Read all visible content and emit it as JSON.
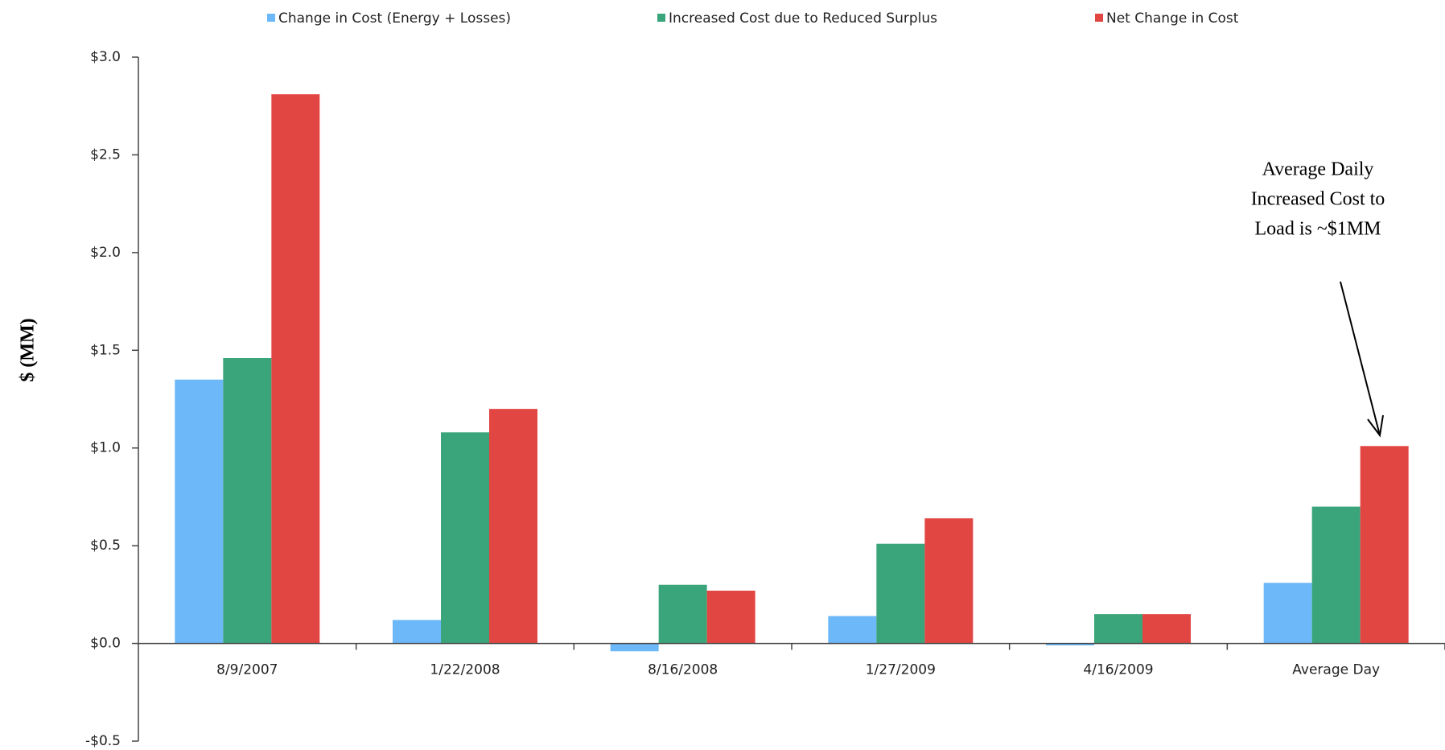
{
  "chart_data": {
    "type": "bar",
    "y_label": "$ (MM)",
    "annotation": [
      "Average Daily",
      "Increased Cost to",
      "Load is ~$1MM"
    ],
    "categories": [
      "8/9/2007",
      "1/22/2008",
      "8/16/2008",
      "1/27/2009",
      "4/16/2009",
      "Average Day"
    ],
    "series": [
      {
        "name": "Change in Cost (Energy + Losses)",
        "color": "#6cb8f8",
        "values": [
          1.35,
          0.12,
          -0.04,
          0.14,
          -0.01,
          0.31
        ]
      },
      {
        "name": "Increased Cost due to Reduced Surplus",
        "color": "#3aa47a",
        "values": [
          1.46,
          1.08,
          0.3,
          0.51,
          0.15,
          0.7
        ]
      },
      {
        "name": "Net Change in Cost",
        "color": "#e24642",
        "values": [
          2.81,
          1.2,
          0.27,
          0.64,
          0.15,
          1.01
        ]
      }
    ],
    "ylim": [
      -0.5,
      3.0
    ],
    "yticks": [
      {
        "value": -0.5,
        "label": "-$0.5"
      },
      {
        "value": 0,
        "label": "$0.0"
      },
      {
        "value": 0.5,
        "label": "$0.5"
      },
      {
        "value": 1.0,
        "label": "$1.0"
      },
      {
        "value": 1.5,
        "label": "$1.5"
      },
      {
        "value": 2.0,
        "label": "$2.0"
      },
      {
        "value": 2.5,
        "label": "$2.5"
      },
      {
        "value": 3.0,
        "label": "$3.0"
      }
    ],
    "legend": "top",
    "grid": false
  }
}
